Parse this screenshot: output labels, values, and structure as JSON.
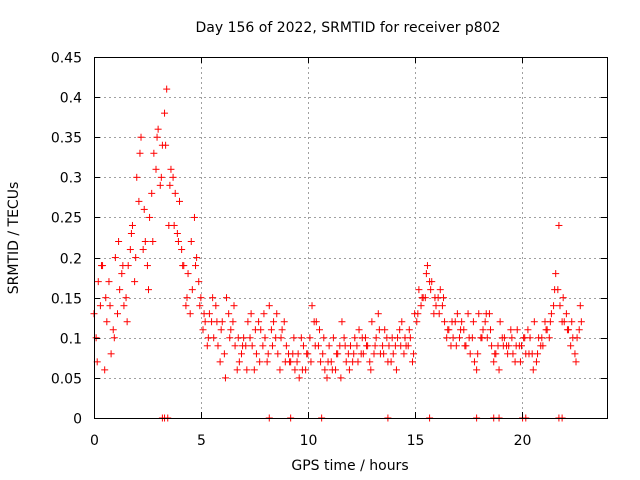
{
  "chart_data": {
    "type": "scatter",
    "title": "Day 156 of 2022, SRMTID for receiver p802",
    "xlabel": "GPS time / hours",
    "ylabel": "SRMTID / TECUs",
    "xlim": [
      0,
      24
    ],
    "ylim": [
      0,
      0.45
    ],
    "xticks": [
      0,
      5,
      10,
      15,
      20
    ],
    "xtick_labels": [
      "0",
      "5",
      "10",
      "15",
      "20"
    ],
    "yticks": [
      0,
      0.05,
      0.1,
      0.15,
      0.2,
      0.25,
      0.3,
      0.35,
      0.4,
      0.45
    ],
    "ytick_labels": [
      "0",
      "0.05",
      "0.1",
      "0.15",
      "0.2",
      "0.25",
      "0.3",
      "0.35",
      "0.4",
      "0.45"
    ],
    "grid": true,
    "marker": "+",
    "color": "#ff0000",
    "series": [
      {
        "name": "SRMTID",
        "x": [
          0.0,
          0.2,
          0.4,
          0.6,
          0.8,
          1.0,
          1.2,
          1.4,
          1.6,
          1.8,
          2.0,
          2.2,
          2.4,
          2.6,
          2.8,
          3.0,
          3.2,
          3.4,
          3.6,
          3.8,
          4.0,
          4.2,
          4.4,
          4.6,
          4.8,
          5.0,
          5.2,
          5.4,
          5.6,
          5.8,
          6.0,
          6.2,
          6.4,
          6.6,
          6.8,
          7.0,
          7.2,
          7.4,
          7.6,
          7.8,
          8.0,
          8.2,
          8.4,
          8.6,
          8.8,
          9.0,
          9.2,
          9.4,
          9.6,
          9.8,
          10.0,
          10.2,
          10.4,
          10.6,
          10.8,
          11.0,
          11.2,
          11.4,
          11.6,
          11.8,
          12.0,
          12.2,
          12.4,
          12.6,
          12.8,
          13.0,
          13.2,
          13.4,
          13.6,
          13.8,
          14.0,
          14.2,
          14.4,
          14.6,
          14.8,
          15.0,
          15.2,
          15.4,
          15.6,
          15.8,
          16.0,
          16.2,
          16.4,
          16.6,
          16.8,
          17.0,
          17.2,
          17.4,
          17.6,
          17.8,
          18.0,
          18.2,
          18.4,
          18.6,
          18.8,
          19.0,
          19.2,
          19.4,
          19.6,
          19.8,
          20.0,
          20.2,
          20.4,
          20.6,
          20.8,
          21.0,
          21.2,
          21.4,
          21.6,
          21.8,
          22.0,
          22.2,
          22.4,
          22.6,
          22.8,
          0.1,
          0.3,
          0.5,
          0.7,
          0.9,
          1.1,
          1.3,
          1.5,
          1.7,
          1.9,
          2.1,
          2.3,
          2.5,
          2.7,
          2.9,
          3.1,
          3.3,
          3.5,
          3.7,
          3.9,
          4.1,
          4.3,
          4.5,
          4.7,
          4.9,
          5.1,
          5.3,
          5.5,
          5.7,
          5.9,
          6.1,
          6.3,
          6.5,
          6.7,
          6.9,
          7.1,
          7.3,
          7.5,
          7.7,
          7.9,
          8.1,
          8.3,
          8.5,
          8.7,
          8.9,
          9.1,
          9.3,
          9.5,
          9.7,
          9.9,
          10.1,
          10.3,
          10.5,
          10.7,
          10.9,
          11.1,
          11.3,
          11.5,
          11.7,
          11.9,
          12.1,
          12.3,
          12.5,
          12.7,
          12.9,
          13.1,
          13.3,
          13.5,
          13.7,
          13.9,
          14.1,
          14.3,
          14.5,
          14.7,
          14.9,
          15.1,
          15.3,
          15.5,
          15.7,
          15.9,
          16.1,
          16.3,
          16.5,
          16.7,
          16.9,
          17.1,
          17.3,
          17.5,
          17.7,
          17.9,
          18.1,
          18.3,
          18.5,
          18.7,
          18.9,
          19.1,
          19.3,
          19.5,
          19.7,
          19.9,
          20.1,
          20.3,
          20.5,
          20.7,
          20.9,
          21.1,
          21.3,
          21.5,
          21.7,
          21.9,
          22.1,
          22.3,
          22.5,
          22.7,
          0.15,
          0.35,
          0.55,
          0.75,
          0.95,
          1.15,
          1.35,
          1.55,
          1.75,
          1.95,
          2.15,
          2.35,
          2.55,
          2.75,
          2.95,
          3.15,
          3.35,
          3.55,
          3.75,
          3.95,
          4.15,
          4.35,
          4.55,
          4.75,
          4.95,
          5.15,
          5.35,
          5.55,
          5.75,
          5.95,
          6.15,
          6.35,
          6.55,
          6.75,
          6.95,
          7.15,
          7.35,
          7.55,
          7.75,
          7.95,
          8.15,
          8.35,
          8.55,
          8.75,
          8.95,
          9.15,
          9.35,
          9.55,
          9.75,
          9.95,
          10.15,
          10.35,
          10.55,
          10.75,
          10.95,
          11.15,
          11.35,
          11.55,
          11.75,
          11.95,
          12.15,
          12.35,
          12.55,
          12.75,
          12.95,
          13.15,
          13.35,
          13.55,
          13.75,
          13.95,
          14.15,
          14.35,
          14.55,
          14.75,
          14.95,
          15.15,
          15.35,
          15.55,
          15.75,
          15.95,
          16.15,
          16.35,
          16.55,
          16.75,
          16.95,
          17.15,
          17.35,
          17.55,
          17.75,
          17.95,
          18.15,
          18.35,
          18.55,
          18.75,
          18.95,
          19.15,
          19.35,
          19.55,
          19.75,
          19.95,
          20.15,
          20.35,
          20.55,
          20.75,
          20.95,
          21.15,
          21.35,
          21.55,
          21.75,
          21.95,
          22.15,
          22.35,
          22.55,
          22.75,
          3.3,
          3.45,
          3.2,
          21.75,
          8.2,
          9.2,
          10.65,
          13.75,
          15.7,
          17.9,
          18.7,
          18.95,
          20.05,
          20.2,
          21.9
        ],
        "y": [
          0.13,
          0.17,
          0.19,
          0.12,
          0.08,
          0.2,
          0.16,
          0.14,
          0.19,
          0.24,
          0.3,
          0.35,
          0.22,
          0.25,
          0.33,
          0.36,
          0.34,
          0.41,
          0.31,
          0.28,
          0.27,
          0.19,
          0.18,
          0.16,
          0.2,
          0.15,
          0.12,
          0.13,
          0.1,
          0.09,
          0.12,
          0.15,
          0.11,
          0.09,
          0.07,
          0.1,
          0.12,
          0.09,
          0.08,
          0.11,
          0.1,
          0.14,
          0.12,
          0.08,
          0.11,
          0.09,
          0.07,
          0.06,
          0.05,
          0.09,
          0.08,
          0.14,
          0.12,
          0.07,
          0.06,
          0.09,
          0.1,
          0.08,
          0.12,
          0.07,
          0.09,
          0.1,
          0.11,
          0.08,
          0.09,
          0.12,
          0.1,
          0.08,
          0.11,
          0.09,
          0.08,
          0.1,
          0.12,
          0.09,
          0.1,
          0.13,
          0.16,
          0.15,
          0.19,
          0.17,
          0.14,
          0.16,
          0.12,
          0.11,
          0.1,
          0.13,
          0.12,
          0.09,
          0.08,
          0.07,
          0.13,
          0.11,
          0.1,
          0.09,
          0.08,
          0.12,
          0.1,
          0.09,
          0.08,
          0.11,
          0.09,
          0.08,
          0.1,
          0.12,
          0.1,
          0.09,
          0.11,
          0.13,
          0.18,
          0.14,
          0.12,
          0.11,
          0.1,
          0.1,
          0.12,
          0.1,
          0.14,
          0.06,
          0.17,
          0.11,
          0.13,
          0.18,
          0.15,
          0.21,
          0.17,
          0.27,
          0.21,
          0.19,
          0.28,
          0.31,
          0.29,
          0.38,
          0.24,
          0.3,
          0.23,
          0.21,
          0.14,
          0.13,
          0.25,
          0.17,
          0.11,
          0.09,
          0.12,
          0.14,
          0.07,
          0.08,
          0.13,
          0.12,
          0.06,
          0.08,
          0.09,
          0.1,
          0.06,
          0.12,
          0.09,
          0.07,
          0.11,
          0.1,
          0.06,
          0.12,
          0.08,
          0.08,
          0.07,
          0.1,
          0.06,
          0.1,
          0.12,
          0.09,
          0.08,
          0.05,
          0.07,
          0.06,
          0.09,
          0.1,
          0.08,
          0.07,
          0.09,
          0.08,
          0.1,
          0.07,
          0.08,
          0.13,
          0.09,
          0.1,
          0.07,
          0.09,
          0.11,
          0.08,
          0.09,
          0.07,
          0.12,
          0.14,
          0.15,
          0.17,
          0.13,
          0.15,
          0.14,
          0.1,
          0.09,
          0.12,
          0.1,
          0.11,
          0.13,
          0.1,
          0.06,
          0.1,
          0.12,
          0.13,
          0.07,
          0.09,
          0.1,
          0.09,
          0.11,
          0.07,
          0.09,
          0.1,
          0.11,
          0.08,
          0.07,
          0.09,
          0.12,
          0.1,
          0.14,
          0.16,
          0.12,
          0.13,
          0.09,
          0.08,
          0.11,
          0.07,
          0.19,
          0.15,
          0.14,
          0.1,
          0.22,
          0.19,
          0.12,
          0.23,
          0.2,
          0.33,
          0.26,
          0.16,
          0.22,
          0.35,
          0.3,
          0.34,
          0.29,
          0.24,
          0.22,
          0.19,
          0.15,
          0.22,
          0.19,
          0.14,
          0.13,
          0.1,
          0.15,
          0.12,
          0.11,
          0.05,
          0.1,
          0.14,
          0.1,
          0.09,
          0.06,
          0.13,
          0.11,
          0.07,
          0.13,
          0.08,
          0.09,
          0.13,
          0.1,
          0.07,
          0.07,
          0.1,
          0.08,
          0.06,
          0.08,
          0.07,
          0.09,
          0.11,
          0.1,
          0.07,
          0.06,
          0.08,
          0.05,
          0.09,
          0.06,
          0.08,
          0.07,
          0.1,
          0.09,
          0.06,
          0.09,
          0.11,
          0.08,
          0.07,
          0.1,
          0.06,
          0.09,
          0.1,
          0.11,
          0.08,
          0.13,
          0.15,
          0.18,
          0.16,
          0.15,
          0.13,
          0.15,
          0.11,
          0.12,
          0.09,
          0.11,
          0.09,
          0.1,
          0.12,
          0.08,
          0.1,
          0.13,
          0.11,
          0.08,
          0.06,
          0.09,
          0.08,
          0.1,
          0.09,
          0.07,
          0.1,
          0.08,
          0.06,
          0.08,
          0.1,
          0.11,
          0.12,
          0.16,
          0.24,
          0.15,
          0.11,
          0.12,
          0.07,
          0.14,
          0.0,
          0.0,
          0.0,
          0.0,
          0.0,
          0.0,
          0.0,
          0.0,
          0.0,
          0.0,
          0.0,
          0.0,
          0.0,
          0.0,
          0.0
        ]
      }
    ]
  }
}
